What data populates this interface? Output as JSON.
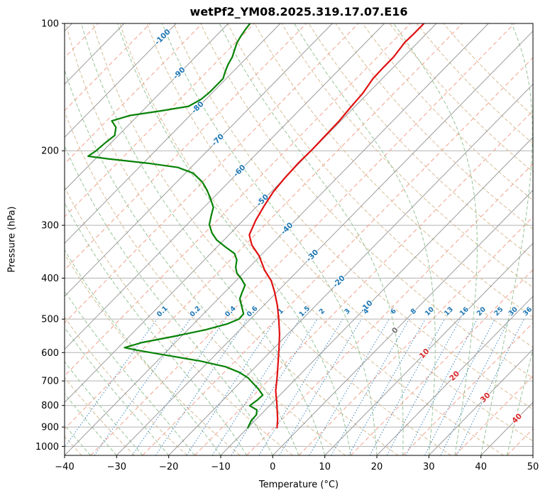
{
  "title": "wetPf2_YM08.2025.319.17.07.E16",
  "axes": {
    "x_label": "Temperature (°C)",
    "y_label": "Pressure (hPa)",
    "x_tick_values": [
      -40,
      -30,
      -20,
      -10,
      0,
      10,
      20,
      30,
      40,
      50
    ],
    "x_tick_labels": [
      "−40",
      "−30",
      "−20",
      "−10",
      "0",
      "10",
      "20",
      "30",
      "40",
      "50"
    ],
    "y_tick_values": [
      100,
      200,
      300,
      400,
      500,
      600,
      700,
      800,
      900,
      1000
    ],
    "y_tick_labels": [
      "100",
      "200",
      "300",
      "400",
      "500",
      "600",
      "700",
      "800",
      "900",
      "1000"
    ]
  },
  "chart_data": {
    "type": "line",
    "variant": "skew-t-log-p-sounding",
    "title": "wetPf2_YM08.2025.319.17.07.E16",
    "xlabel": "Temperature (°C)",
    "ylabel": "Pressure (hPa)",
    "x_axis": {
      "min": -40,
      "max": 50,
      "unit": "°C",
      "ticks": [
        -40,
        -30,
        -20,
        -10,
        0,
        10,
        20,
        30,
        40,
        50
      ]
    },
    "y_axis": {
      "top": 100,
      "bottom": 1050,
      "scale": "log",
      "unit": "hPa",
      "ticks": [
        100,
        200,
        300,
        400,
        500,
        600,
        700,
        800,
        900,
        1000
      ]
    },
    "skew_deg_c_per_ln_p": 34.64,
    "grid": {
      "color": "#b3b3b3",
      "pressure_lines": [
        100,
        200,
        300,
        400,
        500,
        600,
        700,
        800,
        900,
        1000
      ]
    },
    "series": [
      {
        "name": "temperature",
        "color": "#e01010",
        "points": [
          [
            903,
            -4.4
          ],
          [
            862,
            -5.9
          ],
          [
            798,
            -8.7
          ],
          [
            739,
            -11.6
          ],
          [
            684,
            -14.0
          ],
          [
            633,
            -16.5
          ],
          [
            586,
            -19.0
          ],
          [
            542,
            -21.6
          ],
          [
            502,
            -24.4
          ],
          [
            464,
            -27.4
          ],
          [
            430,
            -30.6
          ],
          [
            406,
            -33.2
          ],
          [
            383,
            -36.5
          ],
          [
            354,
            -40.3
          ],
          [
            334,
            -43.7
          ],
          [
            316,
            -46.1
          ],
          [
            292,
            -47.6
          ],
          [
            270,
            -48.7
          ],
          [
            250,
            -49.6
          ],
          [
            232,
            -50.0
          ],
          [
            214,
            -50.2
          ],
          [
            198,
            -50.1
          ],
          [
            184,
            -50.2
          ],
          [
            170,
            -50.3
          ],
          [
            157,
            -50.7
          ],
          [
            146,
            -51.0
          ],
          [
            135,
            -51.8
          ],
          [
            127,
            -51.9
          ],
          [
            120,
            -51.9
          ],
          [
            111,
            -52.5
          ],
          [
            106,
            -52.4
          ],
          [
            100,
            -52.4
          ]
        ]
      },
      {
        "name": "dewpoint",
        "color": "#078207",
        "points": [
          [
            903,
            -10.0
          ],
          [
            869,
            -10.7
          ],
          [
            842,
            -10.8
          ],
          [
            820,
            -11.6
          ],
          [
            801,
            -13.8
          ],
          [
            777,
            -13.4
          ],
          [
            756,
            -13.3
          ],
          [
            730,
            -15.4
          ],
          [
            711,
            -17.2
          ],
          [
            689,
            -19.3
          ],
          [
            668,
            -22.1
          ],
          [
            648,
            -25.8
          ],
          [
            628,
            -31.8
          ],
          [
            609,
            -39.2
          ],
          [
            592,
            -46.0
          ],
          [
            584,
            -48.8
          ],
          [
            568,
            -46.4
          ],
          [
            548,
            -41.1
          ],
          [
            530,
            -36.6
          ],
          [
            513,
            -33.5
          ],
          [
            500,
            -32.2
          ],
          [
            486,
            -32.3
          ],
          [
            464,
            -34.3
          ],
          [
            447,
            -35.9
          ],
          [
            433,
            -36.6
          ],
          [
            416,
            -37.4
          ],
          [
            401,
            -39.4
          ],
          [
            389,
            -41.3
          ],
          [
            377,
            -42.6
          ],
          [
            362,
            -43.8
          ],
          [
            350,
            -45.4
          ],
          [
            338,
            -48.3
          ],
          [
            325,
            -51.4
          ],
          [
            313,
            -53.6
          ],
          [
            299,
            -55.7
          ],
          [
            285,
            -57.0
          ],
          [
            272,
            -58.2
          ],
          [
            260,
            -60.3
          ],
          [
            248,
            -62.6
          ],
          [
            237,
            -65.1
          ],
          [
            226,
            -68.5
          ],
          [
            219,
            -72.5
          ],
          [
            214,
            -79.1
          ],
          [
            209,
            -87.5
          ],
          [
            206,
            -91.9
          ],
          [
            200,
            -91.4
          ],
          [
            191,
            -91.1
          ],
          [
            184,
            -90.7
          ],
          [
            176,
            -92.0
          ],
          [
            170,
            -94.0
          ],
          [
            165,
            -91.5
          ],
          [
            161,
            -86.5
          ],
          [
            157,
            -82.0
          ],
          [
            151,
            -80.9
          ],
          [
            145,
            -80.6
          ],
          [
            140,
            -80.6
          ],
          [
            135,
            -80.6
          ],
          [
            130,
            -81.5
          ],
          [
            125,
            -82.3
          ],
          [
            120,
            -82.9
          ],
          [
            115,
            -83.9
          ],
          [
            111,
            -84.7
          ],
          [
            107,
            -85.2
          ],
          [
            103,
            -85.6
          ],
          [
            100,
            -85.8
          ]
        ]
      }
    ],
    "reference_lines": {
      "isotherms_major": {
        "start": -120,
        "end": 50,
        "step": 10,
        "color": "#9c9c9c",
        "style": "solid"
      },
      "isotherms_minor": {
        "start": -115,
        "end": 45,
        "step": 10,
        "color": "#f2a08c",
        "style": "dashed"
      },
      "isotherm_labels": {
        "values": [
          -100,
          -90,
          -80,
          -70,
          -60,
          -50,
          -40,
          -30,
          -20,
          -10,
          0,
          10,
          20,
          30,
          40
        ],
        "along_dry_adiabat_theta_k": 327,
        "color_negative": "#1f77b4",
        "color_zero": "#707070",
        "color_positive": "#d62728"
      },
      "dry_adiabats": {
        "start": -40,
        "end": 160,
        "step": 10,
        "color": "#d7bd96",
        "style": "dashed"
      },
      "moist_adiabats": {
        "start": -40,
        "end": 45,
        "step": 5,
        "color": "#97c497",
        "style": "dashed"
      },
      "mixing_ratio_lines": {
        "values_g_kg": [
          0.1,
          0.2,
          0.4,
          0.6,
          1,
          1.5,
          2,
          3,
          4,
          6,
          8,
          10,
          13,
          16,
          20,
          25,
          30,
          36
        ],
        "color": "#3e87bf",
        "style": "dotted",
        "p_bottom": 1050,
        "p_top": 500,
        "label_pressure": 480,
        "label_color": "#1f77b4"
      }
    }
  }
}
